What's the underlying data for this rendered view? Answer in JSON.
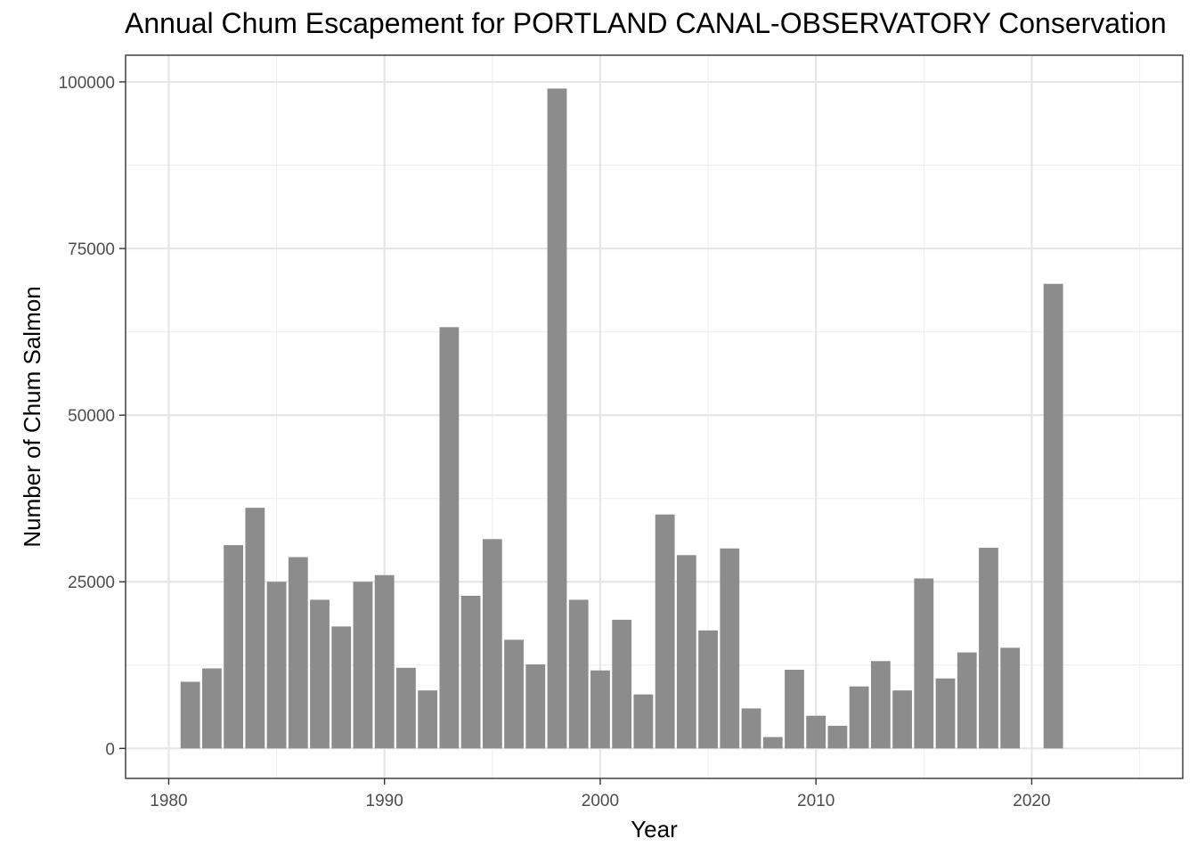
{
  "chart_data": {
    "type": "bar",
    "title": "Annual Chum Escapement for PORTLAND CANAL-OBSERVATORY Conservation",
    "xlabel": "Year",
    "ylabel": "Number of Chum Salmon",
    "xlim": [
      1978,
      2027
    ],
    "ylim": [
      -4500,
      104000
    ],
    "x_ticks": [
      1980,
      1990,
      2000,
      2010,
      2020
    ],
    "y_ticks": [
      0,
      25000,
      50000,
      75000,
      100000
    ],
    "grid": true,
    "bar_color": "#8c8c8c",
    "x": [
      1981,
      1982,
      1983,
      1984,
      1985,
      1986,
      1987,
      1988,
      1989,
      1990,
      1991,
      1992,
      1993,
      1994,
      1995,
      1996,
      1997,
      1998,
      1999,
      2000,
      2001,
      2002,
      2003,
      2004,
      2005,
      2006,
      2007,
      2008,
      2009,
      2010,
      2011,
      2012,
      2013,
      2014,
      2015,
      2016,
      2017,
      2018,
      2019,
      2021
    ],
    "values": [
      10000,
      12000,
      30500,
      36100,
      25000,
      28700,
      22300,
      18300,
      25000,
      26000,
      12100,
      8700,
      63200,
      22900,
      31400,
      16300,
      12600,
      99000,
      22300,
      11700,
      19300,
      8100,
      35100,
      29000,
      17700,
      30000,
      6000,
      1700,
      11800,
      4900,
      3400,
      9300,
      13100,
      8700,
      25500,
      10500,
      14400,
      30100,
      15100,
      69700
    ]
  }
}
